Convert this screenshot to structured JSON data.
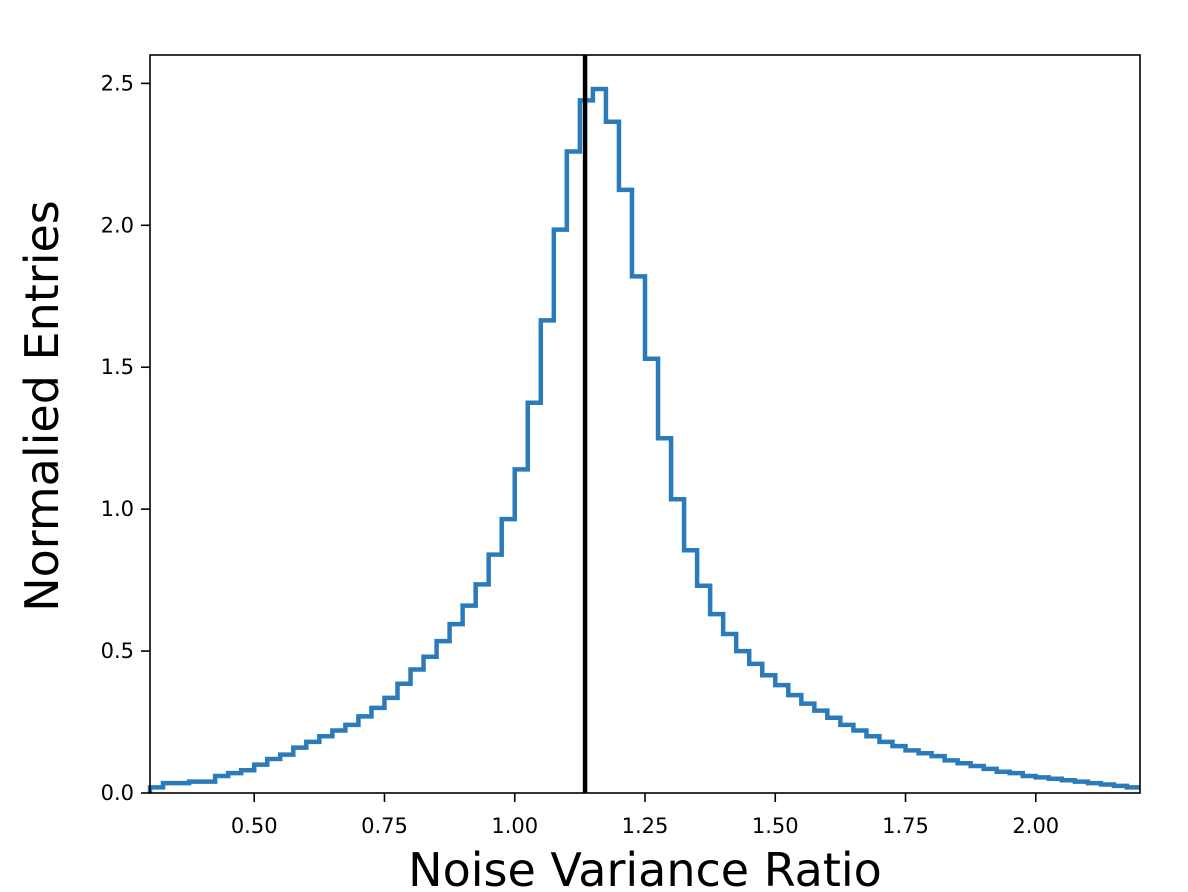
{
  "chart_data": {
    "type": "histogram",
    "title": "",
    "xlabel": "Noise Variance Ratio",
    "ylabel": "Normalied Entries",
    "xlim": [
      0.3,
      2.2
    ],
    "ylim": [
      0.0,
      2.6
    ],
    "bin_width": 0.025,
    "x_ticks": [
      {
        "value": 0.5,
        "label": "0.50"
      },
      {
        "value": 0.75,
        "label": "0.75"
      },
      {
        "value": 1.0,
        "label": "1.00"
      },
      {
        "value": 1.25,
        "label": "1.25"
      },
      {
        "value": 1.5,
        "label": "1.50"
      },
      {
        "value": 1.75,
        "label": "1.75"
      },
      {
        "value": 2.0,
        "label": "2.00"
      }
    ],
    "y_ticks": [
      {
        "value": 0.0,
        "label": "0.0"
      },
      {
        "value": 0.5,
        "label": "0.5"
      },
      {
        "value": 1.0,
        "label": "1.0"
      },
      {
        "value": 1.5,
        "label": "1.5"
      },
      {
        "value": 2.0,
        "label": "2.0"
      },
      {
        "value": 2.5,
        "label": "2.5"
      }
    ],
    "bin_edges": [
      0.3,
      0.325,
      0.35,
      0.375,
      0.4,
      0.425,
      0.45,
      0.475,
      0.5,
      0.525,
      0.55,
      0.575,
      0.6,
      0.625,
      0.65,
      0.675,
      0.7,
      0.725,
      0.75,
      0.775,
      0.8,
      0.825,
      0.85,
      0.875,
      0.9,
      0.925,
      0.95,
      0.975,
      1.0,
      1.025,
      1.05,
      1.075,
      1.1,
      1.125,
      1.15,
      1.175,
      1.2,
      1.225,
      1.25,
      1.275,
      1.3,
      1.325,
      1.35,
      1.375,
      1.4,
      1.425,
      1.45,
      1.475,
      1.5,
      1.525,
      1.55,
      1.575,
      1.6,
      1.625,
      1.65,
      1.675,
      1.7,
      1.725,
      1.75,
      1.775,
      1.8,
      1.825,
      1.85,
      1.875,
      1.9,
      1.925,
      1.95,
      1.975,
      2.0,
      2.025,
      2.05,
      2.075,
      2.1,
      2.125,
      2.15,
      2.175,
      2.2
    ],
    "values": [
      0.02,
      0.035,
      0.035,
      0.04,
      0.04,
      0.06,
      0.07,
      0.08,
      0.1,
      0.12,
      0.135,
      0.16,
      0.18,
      0.2,
      0.22,
      0.24,
      0.27,
      0.3,
      0.335,
      0.385,
      0.435,
      0.48,
      0.535,
      0.595,
      0.66,
      0.735,
      0.84,
      0.965,
      1.14,
      1.375,
      1.665,
      1.985,
      2.26,
      2.44,
      2.48,
      2.365,
      2.125,
      1.82,
      1.53,
      1.25,
      1.035,
      0.855,
      0.73,
      0.63,
      0.56,
      0.5,
      0.455,
      0.415,
      0.38,
      0.345,
      0.315,
      0.29,
      0.265,
      0.24,
      0.22,
      0.2,
      0.18,
      0.165,
      0.15,
      0.14,
      0.13,
      0.115,
      0.105,
      0.095,
      0.085,
      0.075,
      0.07,
      0.06,
      0.055,
      0.05,
      0.045,
      0.04,
      0.035,
      0.03,
      0.025,
      0.02
    ],
    "vertical_line": {
      "x": 1.135
    },
    "series_color": "#2b7bba",
    "line_color": "#000000",
    "grid": false,
    "legend": false
  }
}
